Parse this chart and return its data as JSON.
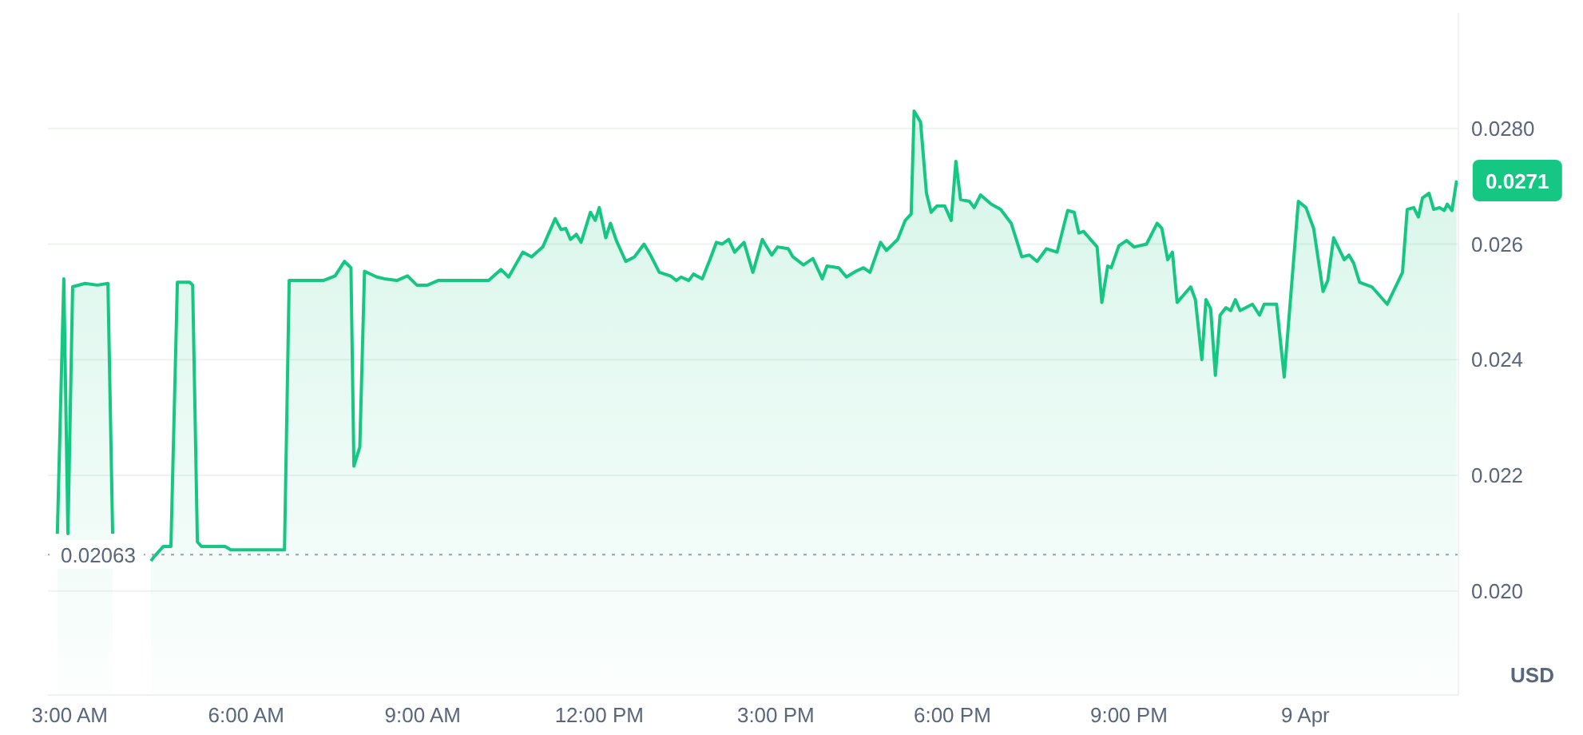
{
  "chart_data": {
    "type": "area",
    "ylabel": "USD",
    "x": [
      2.79,
      2.9,
      2.97,
      3.05,
      3.26,
      3.47,
      3.65,
      3.73,
      4.0,
      4.38,
      4.44,
      4.59,
      4.72,
      4.83,
      5.04,
      5.09,
      5.17,
      5.24,
      5.64,
      5.74,
      6.65,
      6.73,
      7.31,
      7.51,
      7.67,
      7.78,
      7.83,
      7.93,
      8.01,
      8.22,
      8.35,
      8.56,
      8.74,
      8.9,
      9.08,
      9.26,
      10.12,
      10.33,
      10.46,
      10.7,
      10.85,
      11.04,
      11.25,
      11.35,
      11.43,
      11.51,
      11.61,
      11.69,
      11.85,
      11.93,
      12.0,
      12.11,
      12.19,
      12.29,
      12.45,
      12.6,
      12.76,
      12.87,
      13.02,
      13.21,
      13.31,
      13.39,
      13.52,
      13.6,
      13.75,
      13.88,
      13.99,
      14.09,
      14.2,
      14.3,
      14.46,
      14.61,
      14.77,
      14.93,
      15.03,
      15.21,
      15.29,
      15.47,
      15.63,
      15.79,
      15.87,
      16.07,
      16.2,
      16.36,
      16.49,
      16.6,
      16.78,
      16.88,
      17.07,
      17.2,
      17.3,
      17.35,
      17.46,
      17.56,
      17.64,
      17.74,
      17.87,
      17.98,
      18.06,
      18.14,
      18.29,
      18.37,
      18.48,
      18.66,
      18.82,
      19.0,
      19.18,
      19.31,
      19.44,
      19.6,
      19.78,
      19.96,
      20.07,
      20.15,
      20.23,
      20.46,
      20.54,
      20.64,
      20.7,
      20.83,
      20.96,
      21.09,
      21.3,
      21.48,
      21.56,
      21.66,
      21.74,
      21.82,
      22.05,
      22.13,
      22.24,
      22.31,
      22.39,
      22.47,
      22.55,
      22.65,
      22.73,
      22.81,
      22.89,
      23.1,
      23.22,
      23.3,
      23.51,
      23.64,
      23.88,
      24.01,
      24.14,
      24.3,
      24.38,
      24.48,
      24.66,
      24.74,
      24.82,
      24.92,
      25.13,
      25.39,
      25.65,
      25.73,
      25.84,
      25.92,
      25.99,
      26.1,
      26.18,
      26.28,
      26.36,
      26.41,
      26.49,
      26.57
    ],
    "series": [
      {
        "color": "#16c784",
        "values": [
          0.02099,
          0.0254,
          0.02099,
          0.02526,
          0.02532,
          0.02529,
          0.02532,
          0.02099,
          null,
          0.02052,
          0.0206,
          0.02077,
          0.02077,
          0.02534,
          0.02534,
          0.02529,
          0.02085,
          0.02077,
          0.02077,
          0.02071,
          0.02071,
          0.02537,
          0.02537,
          0.02545,
          0.0257,
          0.02559,
          0.02216,
          0.02249,
          0.02553,
          0.02543,
          0.0254,
          0.02537,
          0.02545,
          0.02529,
          0.02529,
          0.02537,
          0.02537,
          0.02556,
          0.02543,
          0.02586,
          0.02578,
          0.02595,
          0.02644,
          0.02625,
          0.02627,
          0.02608,
          0.02617,
          0.02603,
          0.02655,
          0.02641,
          0.02663,
          0.02611,
          0.02636,
          0.02606,
          0.0257,
          0.02578,
          0.026,
          0.02581,
          0.02551,
          0.02545,
          0.02537,
          0.02543,
          0.02537,
          0.02548,
          0.0254,
          0.02573,
          0.02603,
          0.026,
          0.02608,
          0.02586,
          0.02603,
          0.02551,
          0.02608,
          0.02581,
          0.02595,
          0.02592,
          0.02578,
          0.02564,
          0.02575,
          0.0254,
          0.02562,
          0.02559,
          0.02543,
          0.02553,
          0.02559,
          0.02551,
          0.02603,
          0.02589,
          0.02608,
          0.02641,
          0.02652,
          0.0283,
          0.02811,
          0.02688,
          0.02655,
          0.02666,
          0.02666,
          0.02641,
          0.02743,
          0.02677,
          0.02674,
          0.02663,
          0.02685,
          0.02669,
          0.0266,
          0.02636,
          0.02578,
          0.02581,
          0.0257,
          0.02592,
          0.02586,
          0.02658,
          0.02655,
          0.02619,
          0.02622,
          0.02595,
          0.02499,
          0.02562,
          0.02559,
          0.02597,
          0.02606,
          0.02595,
          0.026,
          0.02636,
          0.02627,
          0.02573,
          0.02586,
          0.02499,
          0.02526,
          0.02504,
          0.024,
          0.02504,
          0.02488,
          0.02373,
          0.02477,
          0.0249,
          0.02485,
          0.02504,
          0.02485,
          0.02496,
          0.02477,
          0.02496,
          0.02496,
          0.0237,
          0.02674,
          0.02663,
          0.02627,
          0.02518,
          0.02537,
          0.02611,
          0.02573,
          0.02581,
          0.02567,
          0.02534,
          0.02526,
          0.02496,
          0.02551,
          0.0266,
          0.02663,
          0.02647,
          0.0268,
          0.02688,
          0.0266,
          0.02663,
          0.02658,
          0.02669,
          0.02658,
          0.0271
        ]
      }
    ],
    "xlim": [
      2.63,
      26.6
    ],
    "xticks": [
      {
        "value": 3,
        "label": "3:00 AM"
      },
      {
        "value": 6,
        "label": "6:00 AM"
      },
      {
        "value": 9,
        "label": "9:00 AM"
      },
      {
        "value": 12,
        "label": "12:00 PM"
      },
      {
        "value": 15,
        "label": "3:00 PM"
      },
      {
        "value": 18,
        "label": "6:00 PM"
      },
      {
        "value": 21,
        "label": "9:00 PM"
      },
      {
        "value": 24,
        "label": "9 Apr"
      }
    ],
    "ylim": [
      0.0182,
      0.03
    ],
    "yticks": [
      {
        "value": 0.02,
        "label": "0.020"
      },
      {
        "value": 0.022,
        "label": "0.022"
      },
      {
        "value": 0.024,
        "label": "0.024"
      },
      {
        "value": 0.026,
        "label": "0.026"
      },
      {
        "value": 0.028,
        "label": "0.0280"
      }
    ],
    "grid": "y",
    "ref_lines": [
      {
        "axis": "y",
        "value": 0.02063,
        "label": "0.02063",
        "color": "#9aa0ac",
        "line_style": "dotted"
      }
    ],
    "annotations": [
      {
        "text": "0.0271",
        "x": 26.57,
        "y": 0.0271
      }
    ]
  }
}
